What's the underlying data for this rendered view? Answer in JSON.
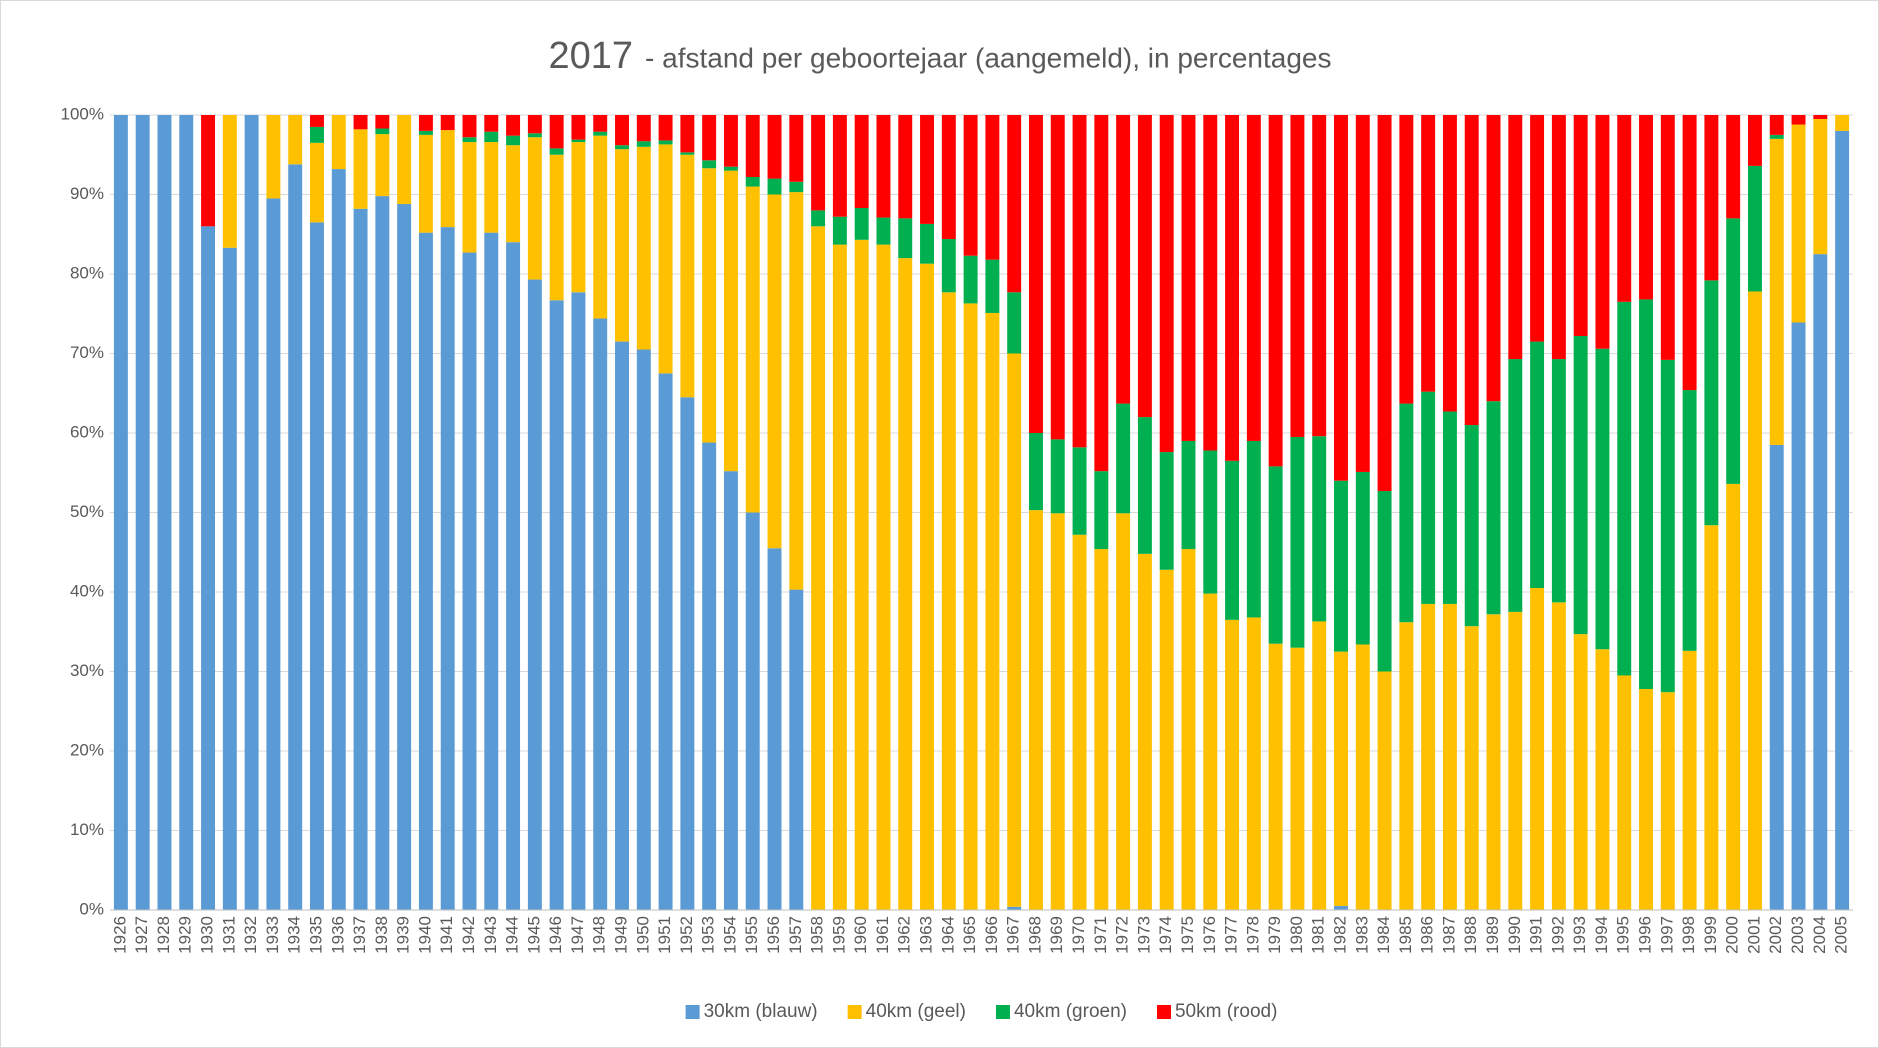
{
  "chart_data": {
    "type": "stacked_bar",
    "title": "2017",
    "subtitle": "- afstand per geboortejaar (aangemeld), in percentages",
    "categories": [
      "1926",
      "1927",
      "1928",
      "1929",
      "1930",
      "1931",
      "1932",
      "1933",
      "1934",
      "1935",
      "1936",
      "1937",
      "1938",
      "1939",
      "1940",
      "1941",
      "1942",
      "1943",
      "1944",
      "1945",
      "1946",
      "1947",
      "1948",
      "1949",
      "1950",
      "1951",
      "1952",
      "1953",
      "1954",
      "1955",
      "1956",
      "1957",
      "1958",
      "1959",
      "1960",
      "1961",
      "1962",
      "1963",
      "1964",
      "1965",
      "1966",
      "1967",
      "1968",
      "1969",
      "1970",
      "1971",
      "1972",
      "1973",
      "1974",
      "1975",
      "1976",
      "1977",
      "1978",
      "1979",
      "1980",
      "1981",
      "1982",
      "1983",
      "1984",
      "1985",
      "1986",
      "1987",
      "1988",
      "1989",
      "1990",
      "1991",
      "1992",
      "1993",
      "1994",
      "1995",
      "1996",
      "1997",
      "1998",
      "1999",
      "2000",
      "2001",
      "2002",
      "2003",
      "2004",
      "2005"
    ],
    "series": [
      {
        "name": "30km (blauw)",
        "color": "#5b9bd5",
        "values": [
          100,
          100,
          100,
          100,
          86,
          83.3,
          100,
          89.5,
          93.8,
          86.5,
          93.2,
          88.2,
          89.8,
          88.8,
          85.2,
          85.9,
          82.7,
          85.2,
          84,
          79.3,
          76.7,
          77.7,
          74.4,
          71.5,
          70.5,
          67.5,
          64.5,
          58.8,
          55.2,
          50,
          45.5,
          40.3,
          0,
          0,
          0,
          0,
          0,
          0,
          0,
          0,
          0,
          0.4,
          0,
          0,
          0,
          0,
          0,
          0,
          0,
          0,
          0,
          0,
          0,
          0,
          0,
          0,
          0.5,
          0,
          0,
          0,
          0,
          0,
          0,
          0,
          0,
          0,
          0,
          0,
          0,
          0,
          0,
          0,
          0,
          0,
          0,
          0,
          58.5,
          73.9,
          82.5,
          98
        ]
      },
      {
        "name": "40km (geel)",
        "color": "#ffc000",
        "values": [
          0,
          0,
          0,
          0,
          0,
          16.7,
          0,
          10.5,
          6.2,
          10,
          6.8,
          10,
          7.8,
          11.2,
          12.3,
          12.2,
          13.9,
          11.4,
          12.2,
          17.9,
          18.3,
          18.9,
          23,
          24.2,
          25.5,
          28.8,
          30.5,
          34.5,
          37.8,
          41,
          44.5,
          50,
          86,
          83.7,
          84.3,
          83.7,
          82,
          81.3,
          77.7,
          76.3,
          75.1,
          69.6,
          50.3,
          49.9,
          47.2,
          45.4,
          49.9,
          44.8,
          42.8,
          45.4,
          39.8,
          36.5,
          36.8,
          33.5,
          33,
          36.3,
          32,
          33.4,
          30,
          36.2,
          38.5,
          38.5,
          35.7,
          37.2,
          37.5,
          40.5,
          38.7,
          34.7,
          32.8,
          29.5,
          27.8,
          27.4,
          32.6,
          48.4,
          53.6,
          77.8,
          38.5,
          24.9,
          17,
          2
        ]
      },
      {
        "name": "40km (groen)",
        "color": "#00b050",
        "values": [
          0,
          0,
          0,
          0,
          0,
          0,
          0,
          0,
          0,
          2,
          0,
          0,
          0.7,
          0,
          0.5,
          0,
          0.6,
          1.3,
          1.2,
          0.5,
          0.8,
          0.3,
          0.5,
          0.5,
          0.7,
          0.5,
          0.3,
          1,
          0.5,
          1.2,
          2,
          1.3,
          2,
          3.5,
          4,
          3.4,
          5,
          5,
          6.7,
          6,
          6.7,
          7.7,
          9.7,
          9.3,
          11,
          9.8,
          13.8,
          17.2,
          14.8,
          13.6,
          18,
          20,
          22.2,
          22.3,
          26.5,
          23.3,
          21.5,
          21.7,
          22.7,
          27.5,
          26.7,
          24.2,
          25.3,
          26.8,
          31.8,
          31,
          30.6,
          37.5,
          37.8,
          47,
          49,
          41.8,
          32.8,
          30.8,
          33.4,
          15.8,
          0.5,
          0,
          0,
          0
        ]
      },
      {
        "name": "50km (rood)",
        "color": "#ff0000",
        "values": [
          0,
          0,
          0,
          0,
          14,
          0,
          0,
          0,
          0,
          1.5,
          0,
          1.8,
          1.7,
          0,
          2,
          1.9,
          2.8,
          2.1,
          2.6,
          2.3,
          4.2,
          3.1,
          2.1,
          3.8,
          3.3,
          3.2,
          4.7,
          5.7,
          6.5,
          7.8,
          8,
          8.4,
          12,
          12.8,
          11.7,
          12.9,
          13,
          13.7,
          15.6,
          17.7,
          18.2,
          22.3,
          40,
          40.8,
          41.8,
          44.8,
          36.3,
          38,
          42.4,
          41,
          42.2,
          43.5,
          41,
          44.2,
          40.5,
          40.4,
          46,
          44.9,
          47.3,
          36.3,
          34.8,
          37.3,
          39,
          36,
          30.7,
          28.5,
          30.7,
          27.8,
          29.4,
          23.5,
          23.2,
          30.8,
          34.6,
          20.8,
          13,
          6.4,
          2.5,
          1.2,
          0.5,
          0
        ]
      }
    ],
    "ylim": [
      0,
      100
    ],
    "yticks": [
      {
        "value": 0,
        "label": "0%"
      },
      {
        "value": 10,
        "label": "10%"
      },
      {
        "value": 20,
        "label": "20%"
      },
      {
        "value": 30,
        "label": "30%"
      },
      {
        "value": 40,
        "label": "40%"
      },
      {
        "value": 50,
        "label": "50%"
      },
      {
        "value": 60,
        "label": "60%"
      },
      {
        "value": 70,
        "label": "70%"
      },
      {
        "value": 80,
        "label": "80%"
      },
      {
        "value": 90,
        "label": "90%"
      },
      {
        "value": 100,
        "label": "100%"
      }
    ],
    "grid": true,
    "legend": "bottom"
  }
}
